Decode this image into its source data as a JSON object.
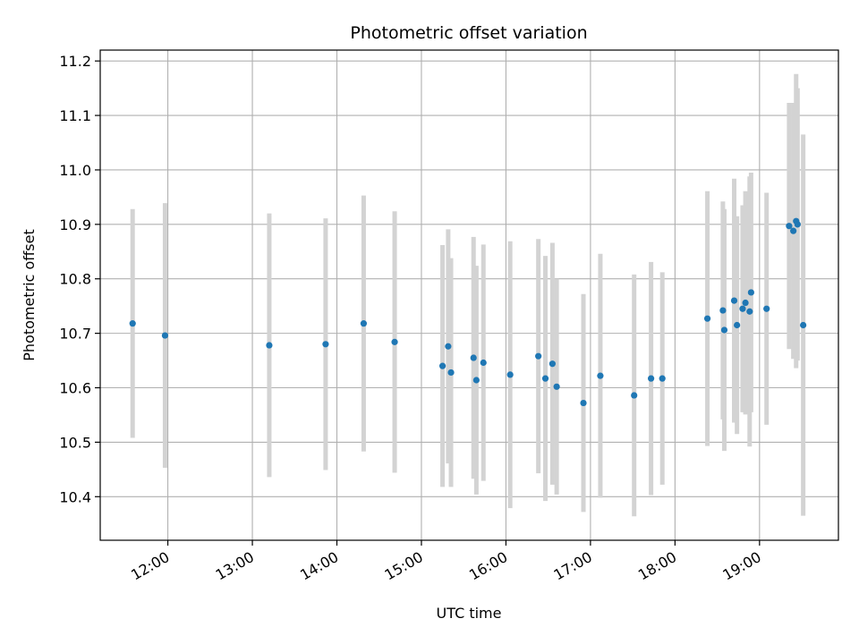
{
  "chart_data": {
    "type": "scatter",
    "title": "Photometric offset variation",
    "xlabel": "UTC time",
    "ylabel": "Photometric offset",
    "x_ticks": [
      "12:00",
      "13:00",
      "14:00",
      "15:00",
      "16:00",
      "17:00",
      "18:00",
      "19:00"
    ],
    "y_ticks": [
      "10.4",
      "10.5",
      "10.6",
      "10.7",
      "10.8",
      "10.9",
      "11.0",
      "11.1",
      "11.2"
    ],
    "xlim": [
      "11:12",
      "19:56"
    ],
    "ylim": [
      10.32,
      11.22
    ],
    "grid": true,
    "colors": {
      "points": "#1f77b4",
      "error_bars": "#d3d3d3",
      "grid": "#b0b0b0"
    },
    "series": [
      {
        "points": [
          {
            "x": "11:35",
            "y": 10.718,
            "err": 0.21
          },
          {
            "x": "11:58",
            "y": 10.696,
            "err": 0.243
          },
          {
            "x": "13:12",
            "y": 10.678,
            "err": 0.242
          },
          {
            "x": "13:52",
            "y": 10.68,
            "err": 0.231
          },
          {
            "x": "14:19",
            "y": 10.718,
            "err": 0.235
          },
          {
            "x": "14:41",
            "y": 10.684,
            "err": 0.24
          },
          {
            "x": "15:15",
            "y": 10.64,
            "err": 0.222
          },
          {
            "x": "15:19",
            "y": 10.676,
            "err": 0.215
          },
          {
            "x": "15:21",
            "y": 10.628,
            "err": 0.21
          },
          {
            "x": "15:37",
            "y": 10.655,
            "err": 0.222
          },
          {
            "x": "15:39",
            "y": 10.614,
            "err": 0.21
          },
          {
            "x": "15:44",
            "y": 10.646,
            "err": 0.217
          },
          {
            "x": "16:03",
            "y": 10.624,
            "err": 0.245
          },
          {
            "x": "16:23",
            "y": 10.658,
            "err": 0.215
          },
          {
            "x": "16:28",
            "y": 10.617,
            "err": 0.225
          },
          {
            "x": "16:33",
            "y": 10.644,
            "err": 0.222
          },
          {
            "x": "16:36",
            "y": 10.602,
            "err": 0.198
          },
          {
            "x": "16:55",
            "y": 10.572,
            "err": 0.2
          },
          {
            "x": "17:07",
            "y": 10.622,
            "err": 0.224
          },
          {
            "x": "17:31",
            "y": 10.586,
            "err": 0.222
          },
          {
            "x": "17:43",
            "y": 10.617,
            "err": 0.214
          },
          {
            "x": "17:51",
            "y": 10.617,
            "err": 0.195
          },
          {
            "x": "18:23",
            "y": 10.727,
            "err": 0.234
          },
          {
            "x": "18:34",
            "y": 10.742,
            "err": 0.2
          },
          {
            "x": "18:35",
            "y": 10.706,
            "err": 0.222
          },
          {
            "x": "18:42",
            "y": 10.76,
            "err": 0.224
          },
          {
            "x": "18:44",
            "y": 10.715,
            "err": 0.2
          },
          {
            "x": "18:48",
            "y": 10.745,
            "err": 0.19
          },
          {
            "x": "18:50",
            "y": 10.756,
            "err": 0.205
          },
          {
            "x": "18:53",
            "y": 10.74,
            "err": 0.248
          },
          {
            "x": "18:54",
            "y": 10.775,
            "err": 0.22
          },
          {
            "x": "19:05",
            "y": 10.745,
            "err": 0.213
          },
          {
            "x": "19:21",
            "y": 10.897,
            "err": 0.226
          },
          {
            "x": "19:24",
            "y": 10.888,
            "err": 0.235
          },
          {
            "x": "19:26",
            "y": 10.906,
            "err": 0.27
          },
          {
            "x": "19:27",
            "y": 10.9,
            "err": 0.25
          },
          {
            "x": "19:31",
            "y": 10.715,
            "err": 0.35
          }
        ]
      }
    ]
  }
}
